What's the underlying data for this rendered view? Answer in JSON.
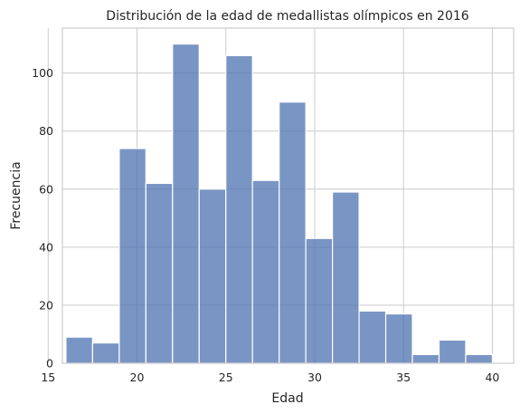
{
  "chart_data": {
    "type": "bar",
    "subtype": "histogram",
    "title": "Distribución de la edad de medallistas olímpicos en 2016",
    "xlabel": "Edad",
    "ylabel": "Frecuencia",
    "xlim": [
      15.8,
      41.2
    ],
    "ylim": [
      0,
      115.5
    ],
    "xticks": [
      15,
      20,
      25,
      30,
      35,
      40
    ],
    "yticks": [
      0,
      20,
      40,
      60,
      80,
      100
    ],
    "grid": true,
    "bar_color": "#4c72b0",
    "bins": [
      {
        "x0": 16.0,
        "x1": 17.5,
        "value": 9
      },
      {
        "x0": 17.5,
        "x1": 19.0,
        "value": 7
      },
      {
        "x0": 19.0,
        "x1": 20.5,
        "value": 74
      },
      {
        "x0": 20.5,
        "x1": 22.0,
        "value": 62
      },
      {
        "x0": 22.0,
        "x1": 23.5,
        "value": 110
      },
      {
        "x0": 23.5,
        "x1": 25.0,
        "value": 60
      },
      {
        "x0": 25.0,
        "x1": 26.5,
        "value": 106
      },
      {
        "x0": 26.5,
        "x1": 28.0,
        "value": 63
      },
      {
        "x0": 28.0,
        "x1": 29.5,
        "value": 90
      },
      {
        "x0": 29.5,
        "x1": 31.0,
        "value": 43
      },
      {
        "x0": 31.0,
        "x1": 32.5,
        "value": 59
      },
      {
        "x0": 32.5,
        "x1": 34.0,
        "value": 18
      },
      {
        "x0": 34.0,
        "x1": 35.5,
        "value": 17
      },
      {
        "x0": 35.5,
        "x1": 37.0,
        "value": 3
      },
      {
        "x0": 37.0,
        "x1": 38.5,
        "value": 8
      },
      {
        "x0": 38.5,
        "x1": 40.0,
        "value": 3
      }
    ]
  }
}
